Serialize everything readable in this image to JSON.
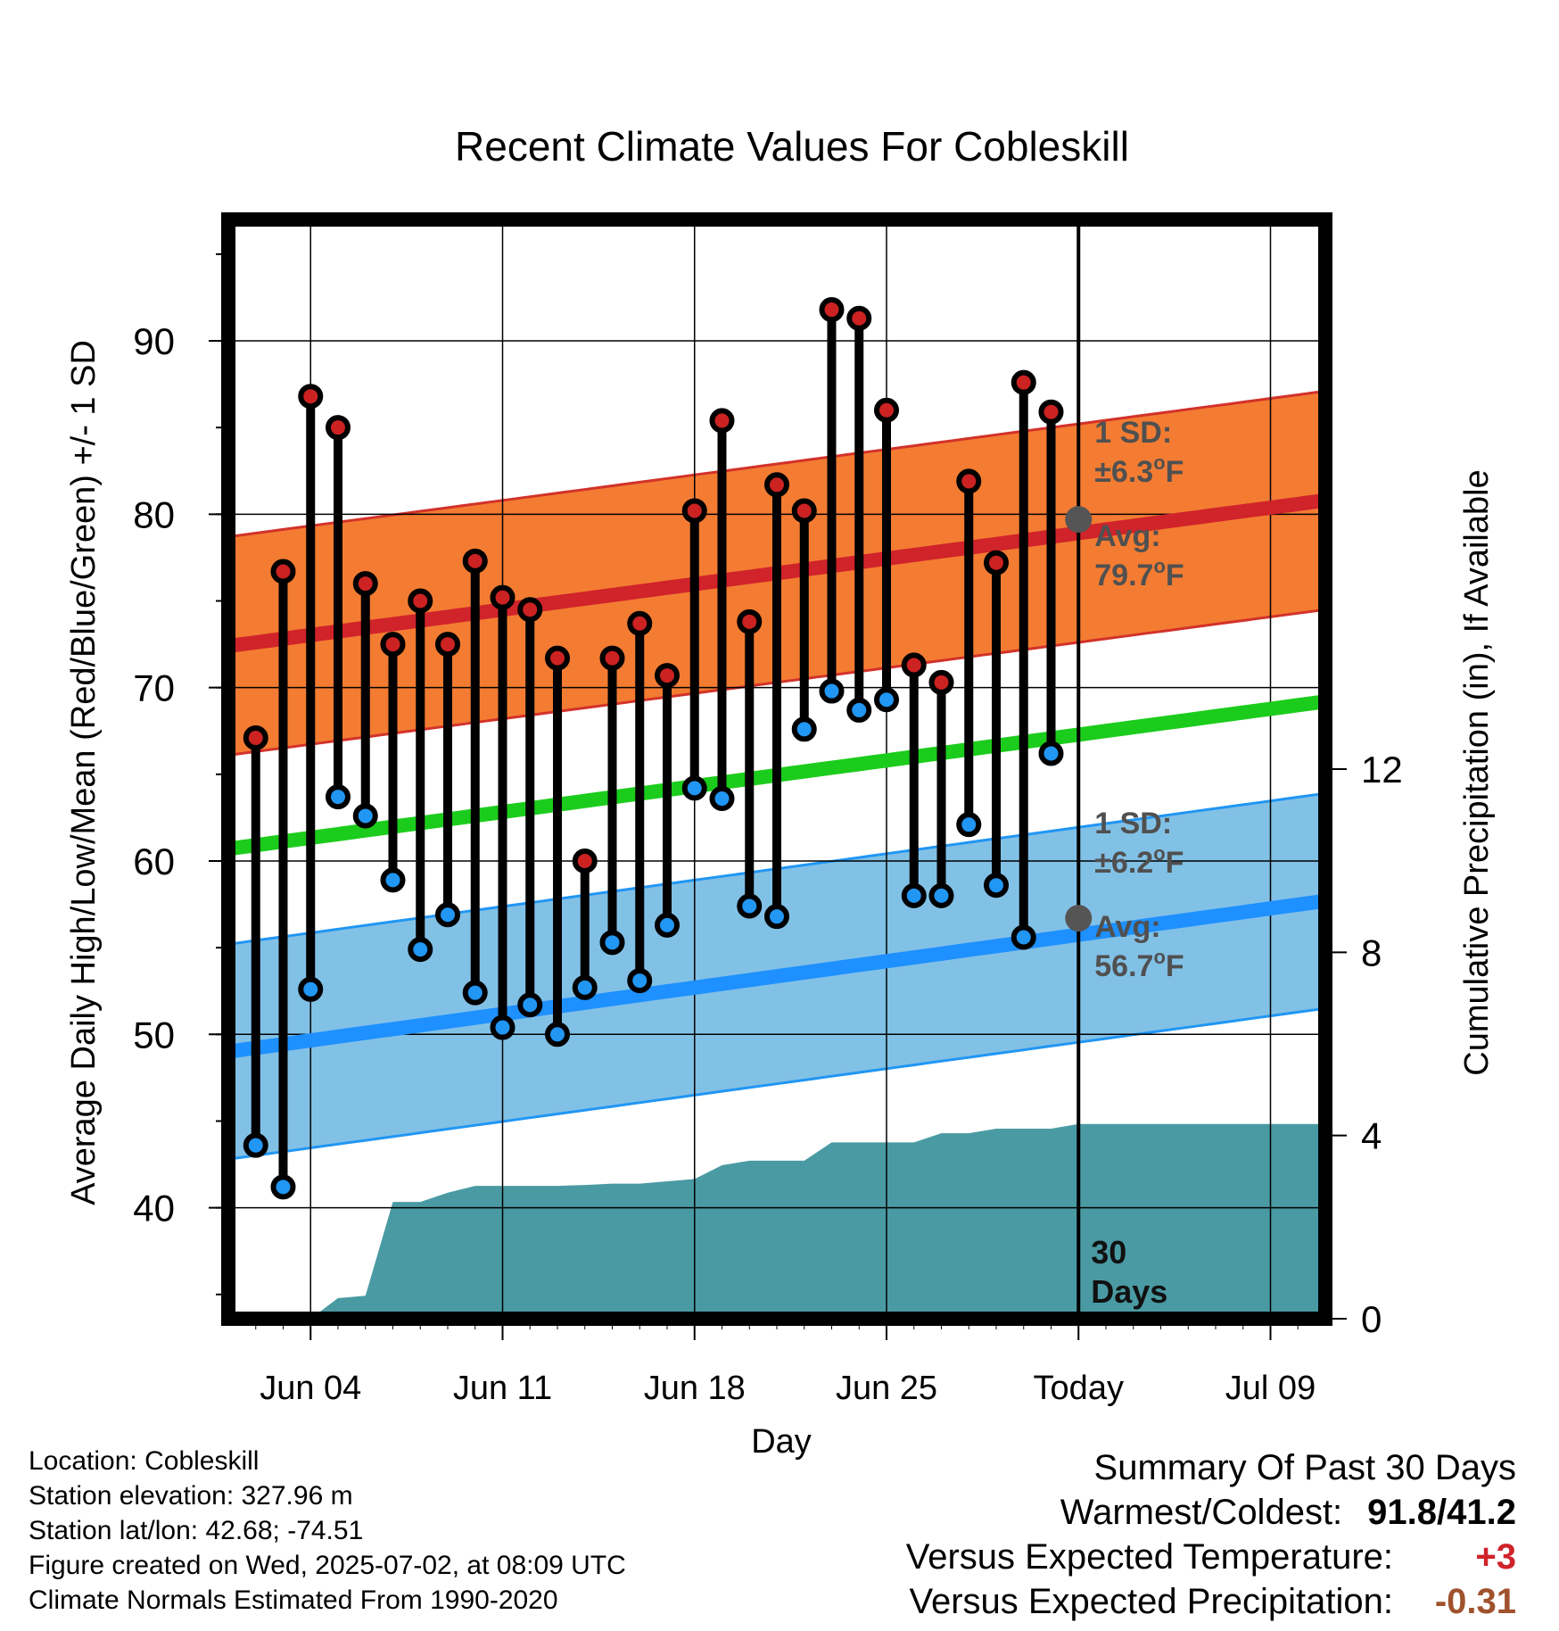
{
  "colors": {
    "high_band": "#f37c32",
    "high_band_edge": "#d2322a",
    "high_avg_line": "#d0232a",
    "mean_line": "#1ccc1c",
    "low_band": "#82c1e6",
    "low_band_edge": "#2196f3",
    "low_avg_line": "#1e90ff",
    "precip_fill": "#4a9aa3",
    "high_marker": "#cc2222",
    "low_marker": "#2196f3",
    "avg_marker": "#555555",
    "annotation": "#505050",
    "positive_temp": "#d0232a",
    "negative_precip": "#a0522d"
  },
  "chart_data": {
    "type": "line",
    "title": "Recent Climate Values For Cobleskill",
    "xlabel": "Day",
    "ylabel_left": "Average Daily High/Low/Mean (Red/Blue/Green) +/- 1 SD",
    "ylabel_right": "Cumulative Precipitation (in), If Available",
    "x_ticks": [
      "Jun 04",
      "Jun 11",
      "Jun 18",
      "Jun 25",
      "Today",
      "Jul 09"
    ],
    "x_tick_dates": [
      "2025-06-04",
      "2025-06-11",
      "2025-06-18",
      "2025-06-25",
      "2025-07-02",
      "2025-07-09"
    ],
    "x_range": [
      "2025-06-01",
      "2025-07-11"
    ],
    "y_left_ticks": [
      40,
      50,
      60,
      70,
      80,
      90
    ],
    "y_left_range": [
      33.6,
      97
    ],
    "y_right_ticks": [
      0,
      4,
      8,
      12
    ],
    "y_right_range": [
      0,
      24
    ],
    "grid": true,
    "today_line": {
      "date": "2025-07-02",
      "label_line1": "30",
      "label_line2": "Days"
    },
    "annotations": {
      "high_sd_label": "1 SD:",
      "high_sd_value": "±6.3",
      "high_avg_label": "Avg:",
      "high_avg_value": "79.7",
      "low_sd_label": "1 SD:",
      "low_sd_value": "±6.2",
      "low_avg_label": "Avg:",
      "low_avg_value": "56.7",
      "unit_sup": "o",
      "unit": "F"
    },
    "normal_high": {
      "x": [
        "2025-06-01",
        "2025-07-11"
      ],
      "y": [
        72.4,
        80.8
      ]
    },
    "normal_high_sd": 6.3,
    "normal_mean": {
      "x": [
        "2025-06-01",
        "2025-07-11"
      ],
      "y": [
        60.7,
        69.2
      ]
    },
    "normal_low": {
      "x": [
        "2025-06-01",
        "2025-07-11"
      ],
      "y": [
        49.0,
        57.7
      ]
    },
    "normal_low_sd": 6.2,
    "avg_markers": [
      {
        "date": "2025-07-02",
        "value": 79.7
      },
      {
        "date": "2025-07-02",
        "value": 56.7
      }
    ],
    "daily": {
      "dates": [
        "2025-06-02",
        "2025-06-03",
        "2025-06-04",
        "2025-06-05",
        "2025-06-06",
        "2025-06-07",
        "2025-06-08",
        "2025-06-09",
        "2025-06-10",
        "2025-06-11",
        "2025-06-12",
        "2025-06-13",
        "2025-06-14",
        "2025-06-15",
        "2025-06-16",
        "2025-06-17",
        "2025-06-18",
        "2025-06-19",
        "2025-06-20",
        "2025-06-21",
        "2025-06-22",
        "2025-06-23",
        "2025-06-24",
        "2025-06-25",
        "2025-06-26",
        "2025-06-27",
        "2025-06-28",
        "2025-06-29",
        "2025-06-30",
        "2025-07-01"
      ],
      "high": [
        67.1,
        76.7,
        86.8,
        85.0,
        76.0,
        72.5,
        75.0,
        72.5,
        77.3,
        75.2,
        74.5,
        71.7,
        60.0,
        71.7,
        73.7,
        70.7,
        80.2,
        85.4,
        73.8,
        81.7,
        80.2,
        91.8,
        91.3,
        86.0,
        71.3,
        70.3,
        81.9,
        77.2,
        87.6,
        85.9
      ],
      "low": [
        43.6,
        41.2,
        52.6,
        63.7,
        62.6,
        58.9,
        54.9,
        56.9,
        52.4,
        50.4,
        51.7,
        50.0,
        52.7,
        55.3,
        53.1,
        56.3,
        64.2,
        63.6,
        57.4,
        56.8,
        67.6,
        69.8,
        68.7,
        69.3,
        58.0,
        58.0,
        62.1,
        58.6,
        55.6,
        66.2
      ]
    },
    "cumulative_precip": {
      "dates": [
        "2025-06-01",
        "2025-06-02",
        "2025-06-03",
        "2025-06-04",
        "2025-06-05",
        "2025-06-06",
        "2025-06-07",
        "2025-06-08",
        "2025-06-09",
        "2025-06-10",
        "2025-06-11",
        "2025-06-12",
        "2025-06-13",
        "2025-06-14",
        "2025-06-15",
        "2025-06-16",
        "2025-06-17",
        "2025-06-18",
        "2025-06-19",
        "2025-06-20",
        "2025-06-21",
        "2025-06-22",
        "2025-06-23",
        "2025-06-24",
        "2025-06-25",
        "2025-06-26",
        "2025-06-27",
        "2025-06-28",
        "2025-06-29",
        "2025-06-30",
        "2025-07-01",
        "2025-07-02",
        "2025-07-11"
      ],
      "values": [
        0,
        0,
        0,
        0,
        0.45,
        0.5,
        2.55,
        2.55,
        2.75,
        2.9,
        2.9,
        2.9,
        2.9,
        2.92,
        2.95,
        2.95,
        3.0,
        3.05,
        3.35,
        3.45,
        3.45,
        3.45,
        3.85,
        3.85,
        3.85,
        3.85,
        4.05,
        4.05,
        4.15,
        4.15,
        4.15,
        4.25,
        4.25
      ]
    }
  },
  "info": {
    "location": "Location: Cobleskill",
    "elevation": "Station elevation: 327.96 m",
    "latlon": "Station lat/lon: 42.68; -74.51",
    "created": "Figure created on Wed, 2025-07-02, at 08:09 UTC",
    "normals": "Climate Normals Estimated From 1990-2020"
  },
  "summary": {
    "title": "Summary Of Past 30 Days",
    "warmest_coldest_label": "Warmest/Coldest:",
    "warmest_coldest_value": "91.8/41.2",
    "temp_label": "Versus Expected Temperature:",
    "temp_value": "+3",
    "precip_label": "Versus Expected Precipitation:",
    "precip_value": "-0.31"
  }
}
